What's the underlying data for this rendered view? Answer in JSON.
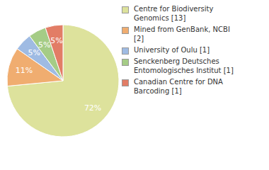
{
  "chart_data": {
    "type": "pie",
    "categories": [
      "Centre for Biodiversity Genomics [13]",
      "Mined from GenBank, NCBI [2]",
      "University of Oulu [1]",
      "Senckenberg Deutsches Entomologisches Institut [1]",
      "Canadian Centre for DNA Barcoding [1]"
    ],
    "values": [
      72,
      11,
      5,
      5,
      5
    ],
    "value_labels": [
      "72%",
      "11%",
      "5%",
      "5%",
      "5%"
    ],
    "colors": [
      "#dde29c",
      "#f0ad70",
      "#9fbbe3",
      "#a5cc86",
      "#e27d66"
    ],
    "data_labels": true,
    "legend": "right"
  }
}
